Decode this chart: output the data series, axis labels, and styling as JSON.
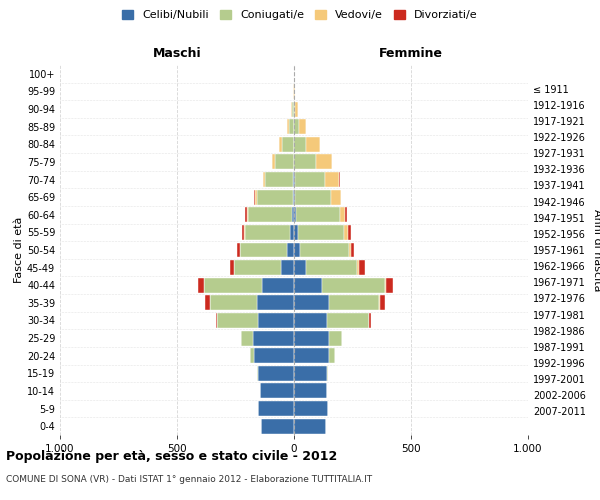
{
  "age_groups": [
    "0-4",
    "5-9",
    "10-14",
    "15-19",
    "20-24",
    "25-29",
    "30-34",
    "35-39",
    "40-44",
    "45-49",
    "50-54",
    "55-59",
    "60-64",
    "65-69",
    "70-74",
    "75-79",
    "80-84",
    "85-89",
    "90-94",
    "95-99",
    "100+"
  ],
  "birth_years": [
    "2007-2011",
    "2002-2006",
    "1997-2001",
    "1992-1996",
    "1987-1991",
    "1982-1986",
    "1977-1981",
    "1972-1976",
    "1967-1971",
    "1962-1966",
    "1957-1961",
    "1952-1956",
    "1947-1951",
    "1942-1946",
    "1937-1941",
    "1932-1936",
    "1927-1931",
    "1922-1926",
    "1917-1921",
    "1912-1916",
    "≤ 1911"
  ],
  "males": {
    "celibi": [
      140,
      155,
      145,
      155,
      170,
      175,
      155,
      160,
      135,
      55,
      30,
      15,
      10,
      5,
      3,
      2,
      0,
      0,
      0,
      0,
      0
    ],
    "coniugati": [
      0,
      0,
      2,
      5,
      20,
      50,
      175,
      200,
      250,
      200,
      200,
      195,
      185,
      155,
      120,
      80,
      50,
      20,
      8,
      2,
      0
    ],
    "vedovi": [
      0,
      0,
      0,
      0,
      0,
      0,
      0,
      0,
      0,
      0,
      2,
      2,
      5,
      5,
      8,
      10,
      15,
      10,
      5,
      1,
      0
    ],
    "divorziati": [
      0,
      0,
      0,
      0,
      0,
      2,
      5,
      20,
      25,
      20,
      12,
      12,
      10,
      8,
      2,
      2,
      0,
      0,
      0,
      0,
      0
    ]
  },
  "females": {
    "nubili": [
      135,
      145,
      140,
      140,
      150,
      150,
      140,
      150,
      120,
      50,
      25,
      15,
      10,
      5,
      3,
      2,
      0,
      0,
      0,
      0,
      0
    ],
    "coniugate": [
      0,
      0,
      2,
      5,
      25,
      55,
      180,
      215,
      270,
      220,
      210,
      200,
      185,
      155,
      130,
      90,
      50,
      20,
      5,
      2,
      0
    ],
    "vedove": [
      0,
      0,
      0,
      0,
      0,
      0,
      2,
      2,
      5,
      8,
      10,
      15,
      25,
      40,
      60,
      70,
      60,
      30,
      10,
      2,
      0
    ],
    "divorziate": [
      0,
      0,
      0,
      0,
      0,
      2,
      5,
      20,
      30,
      25,
      12,
      12,
      5,
      2,
      2,
      2,
      0,
      0,
      0,
      0,
      0
    ]
  },
  "colors": {
    "celibi": "#3a6ea8",
    "coniugati": "#b5cc8e",
    "vedovi": "#f5c97a",
    "divorziati": "#cc2a1f"
  },
  "xlim": 1000,
  "title": "Popolazione per età, sesso e stato civile - 2012",
  "subtitle": "COMUNE DI SONA (VR) - Dati ISTAT 1° gennaio 2012 - Elaborazione TUTTITALIA.IT",
  "ylabel_left": "Fasce di età",
  "ylabel_right": "Anni di nascita",
  "xlabel_left": "Maschi",
  "xlabel_right": "Femmine",
  "legend_labels": [
    "Celibi/Nubili",
    "Coniugati/e",
    "Vedovi/e",
    "Divorziati/e"
  ],
  "background_color": "#ffffff",
  "grid_color": "#cccccc",
  "bar_edge_color": "white",
  "bar_linewidth": 0.3
}
